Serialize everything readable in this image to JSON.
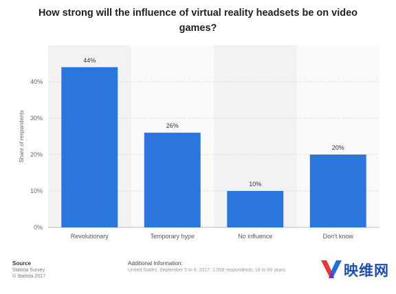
{
  "title": "How strong will the influence of virtual reality headsets be on video games?",
  "chart_data": {
    "type": "bar",
    "categories": [
      "Revolutionary",
      "Temporary hype",
      "No influence",
      "Don't know"
    ],
    "values": [
      44,
      26,
      10,
      20
    ],
    "value_labels": [
      "44%",
      "26%",
      "10%",
      "20%"
    ],
    "ylabel": "Share of respondents",
    "ylim": [
      0,
      50
    ],
    "yticks": [
      0,
      10,
      20,
      30,
      40
    ],
    "ytick_labels": [
      "0%",
      "10%",
      "20%",
      "30%",
      "40%"
    ],
    "grid": true,
    "bar_color": "#2a76dd"
  },
  "footer": {
    "source_heading": "Source",
    "source_lines": [
      "Statista Survey",
      "© Statista 2017"
    ],
    "info_heading": "Additional Information:",
    "info_text": "United States; September 5 to 6, 2017; 1,058 respondents; 18 to 69 years"
  },
  "watermark": {
    "text": "映维网"
  }
}
